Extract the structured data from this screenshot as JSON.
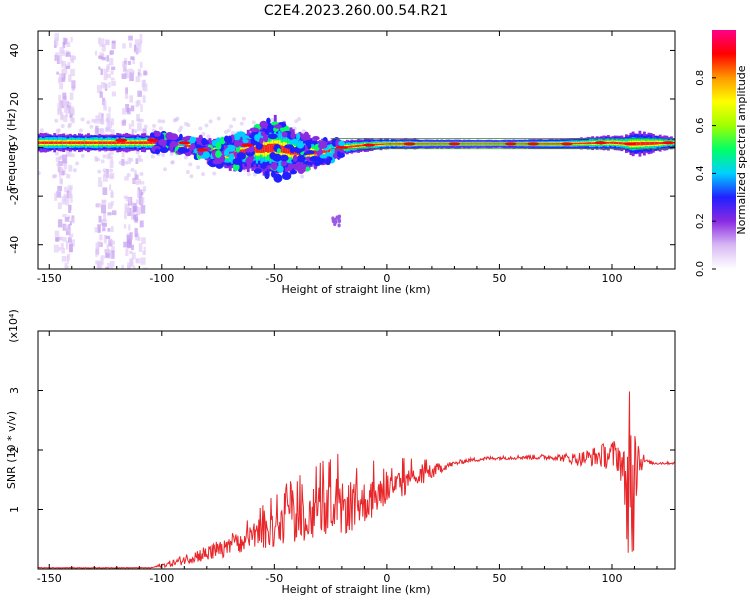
{
  "title": "C2E4.2023.260.00.54.R21",
  "colorbar": {
    "label": "Normalized spectral amplitude",
    "ticks": [
      0.0,
      0.2,
      0.4,
      0.6,
      0.8
    ],
    "tick_labels": [
      "0.0",
      "0.2",
      "0.4",
      "0.6",
      "0.8"
    ],
    "range": [
      0,
      1
    ],
    "colormap": [
      "#ffffff",
      "#d8b8f4",
      "#8a2be2",
      "#2020ff",
      "#00d0ff",
      "#00ff66",
      "#a0ff00",
      "#ffff00",
      "#ff9900",
      "#ff0000",
      "#ff0088"
    ]
  },
  "chart_data": [
    {
      "type": "heatmap",
      "name": "spectrogram",
      "xlabel": "Height of straight line (km)",
      "ylabel": "Frequency (Hz)",
      "xlim": [
        -155,
        128
      ],
      "ylim": [
        -50,
        48
      ],
      "x_ticks": [
        -150,
        -100,
        -50,
        0,
        50,
        100
      ],
      "x_tick_labels": [
        "-150",
        "-100",
        "-50",
        "0",
        "50",
        "100"
      ],
      "y_ticks": [
        -40,
        -20,
        0,
        20,
        40
      ],
      "y_tick_labels": [
        "-40",
        "-20",
        "0",
        "20",
        "40"
      ],
      "band_center": [
        [
          -155,
          2
        ],
        [
          -140,
          2
        ],
        [
          -120,
          2
        ],
        [
          -100,
          2
        ],
        [
          -90,
          1
        ],
        [
          -80,
          -1
        ],
        [
          -70,
          -3
        ],
        [
          -60,
          -1
        ],
        [
          -50,
          0
        ],
        [
          -40,
          -2
        ],
        [
          -30,
          -2
        ],
        [
          -20,
          0
        ],
        [
          -10,
          1
        ],
        [
          0,
          1.5
        ],
        [
          25,
          1.5
        ],
        [
          50,
          1.5
        ],
        [
          75,
          1.5
        ],
        [
          100,
          2
        ],
        [
          108,
          1.5
        ],
        [
          128,
          2
        ]
      ],
      "band_halfwidth": [
        [
          -155,
          3.5
        ],
        [
          -110,
          3.5
        ],
        [
          -90,
          3
        ],
        [
          -75,
          5
        ],
        [
          -60,
          8
        ],
        [
          -50,
          12
        ],
        [
          -40,
          8
        ],
        [
          -30,
          5
        ],
        [
          -20,
          3
        ],
        [
          0,
          2
        ],
        [
          50,
          1.8
        ],
        [
          90,
          2.5
        ],
        [
          105,
          3
        ],
        [
          110,
          5
        ],
        [
          128,
          2
        ]
      ],
      "fringe_columns": [
        [
          -148,
          -140
        ],
        [
          -130,
          -122
        ],
        [
          -118,
          -108
        ]
      ]
    },
    {
      "type": "line",
      "name": "snr",
      "xlabel": "Height of straight line (km)",
      "ylabel": "SNR (10 * v/v)",
      "y_multiplier": "(x10⁴)",
      "xlim": [
        -155,
        128
      ],
      "ylim": [
        0,
        4
      ],
      "x_ticks": [
        -150,
        -100,
        -50,
        0,
        50,
        100
      ],
      "x_tick_labels": [
        "-150",
        "-100",
        "-50",
        "0",
        "50",
        "100"
      ],
      "y_ticks": [
        1,
        2,
        3
      ],
      "y_tick_labels": [
        "1",
        "2",
        "3"
      ],
      "series": [
        {
          "color": "#e8262a",
          "envelope": [
            [
              -155,
              0.02
            ],
            [
              -120,
              0.02
            ],
            [
              -105,
              0.02
            ],
            [
              -95,
              0.1
            ],
            [
              -85,
              0.22
            ],
            [
              -75,
              0.3
            ],
            [
              -65,
              0.42
            ],
            [
              -55,
              0.58
            ],
            [
              -45,
              0.75
            ],
            [
              -35,
              0.85
            ],
            [
              -25,
              0.95
            ],
            [
              -15,
              1.05
            ],
            [
              -5,
              1.2
            ],
            [
              5,
              1.4
            ],
            [
              15,
              1.55
            ],
            [
              25,
              1.72
            ],
            [
              35,
              1.82
            ],
            [
              45,
              1.86
            ],
            [
              60,
              1.88
            ],
            [
              75,
              1.88
            ],
            [
              85,
              1.85
            ],
            [
              95,
              1.9
            ],
            [
              103,
              1.92
            ],
            [
              106,
              1.5
            ],
            [
              108,
              1.0
            ],
            [
              110,
              2.2
            ],
            [
              112,
              1.85
            ],
            [
              118,
              1.78
            ],
            [
              128,
              1.78
            ]
          ],
          "noise": [
            [
              -155,
              0.005
            ],
            [
              -105,
              0.005
            ],
            [
              -95,
              0.06
            ],
            [
              -80,
              0.14
            ],
            [
              -60,
              0.22
            ],
            [
              -40,
              0.36
            ],
            [
              -25,
              0.46
            ],
            [
              -15,
              0.42
            ],
            [
              -5,
              0.3
            ],
            [
              10,
              0.2
            ],
            [
              20,
              0.12
            ],
            [
              30,
              0.04
            ],
            [
              50,
              0.03
            ],
            [
              75,
              0.05
            ],
            [
              90,
              0.15
            ],
            [
              100,
              0.25
            ],
            [
              105,
              0.35
            ],
            [
              108,
              1.3
            ],
            [
              110,
              1.2
            ],
            [
              112,
              0.3
            ],
            [
              115,
              0.03
            ],
            [
              128,
              0.02
            ]
          ]
        }
      ]
    }
  ]
}
